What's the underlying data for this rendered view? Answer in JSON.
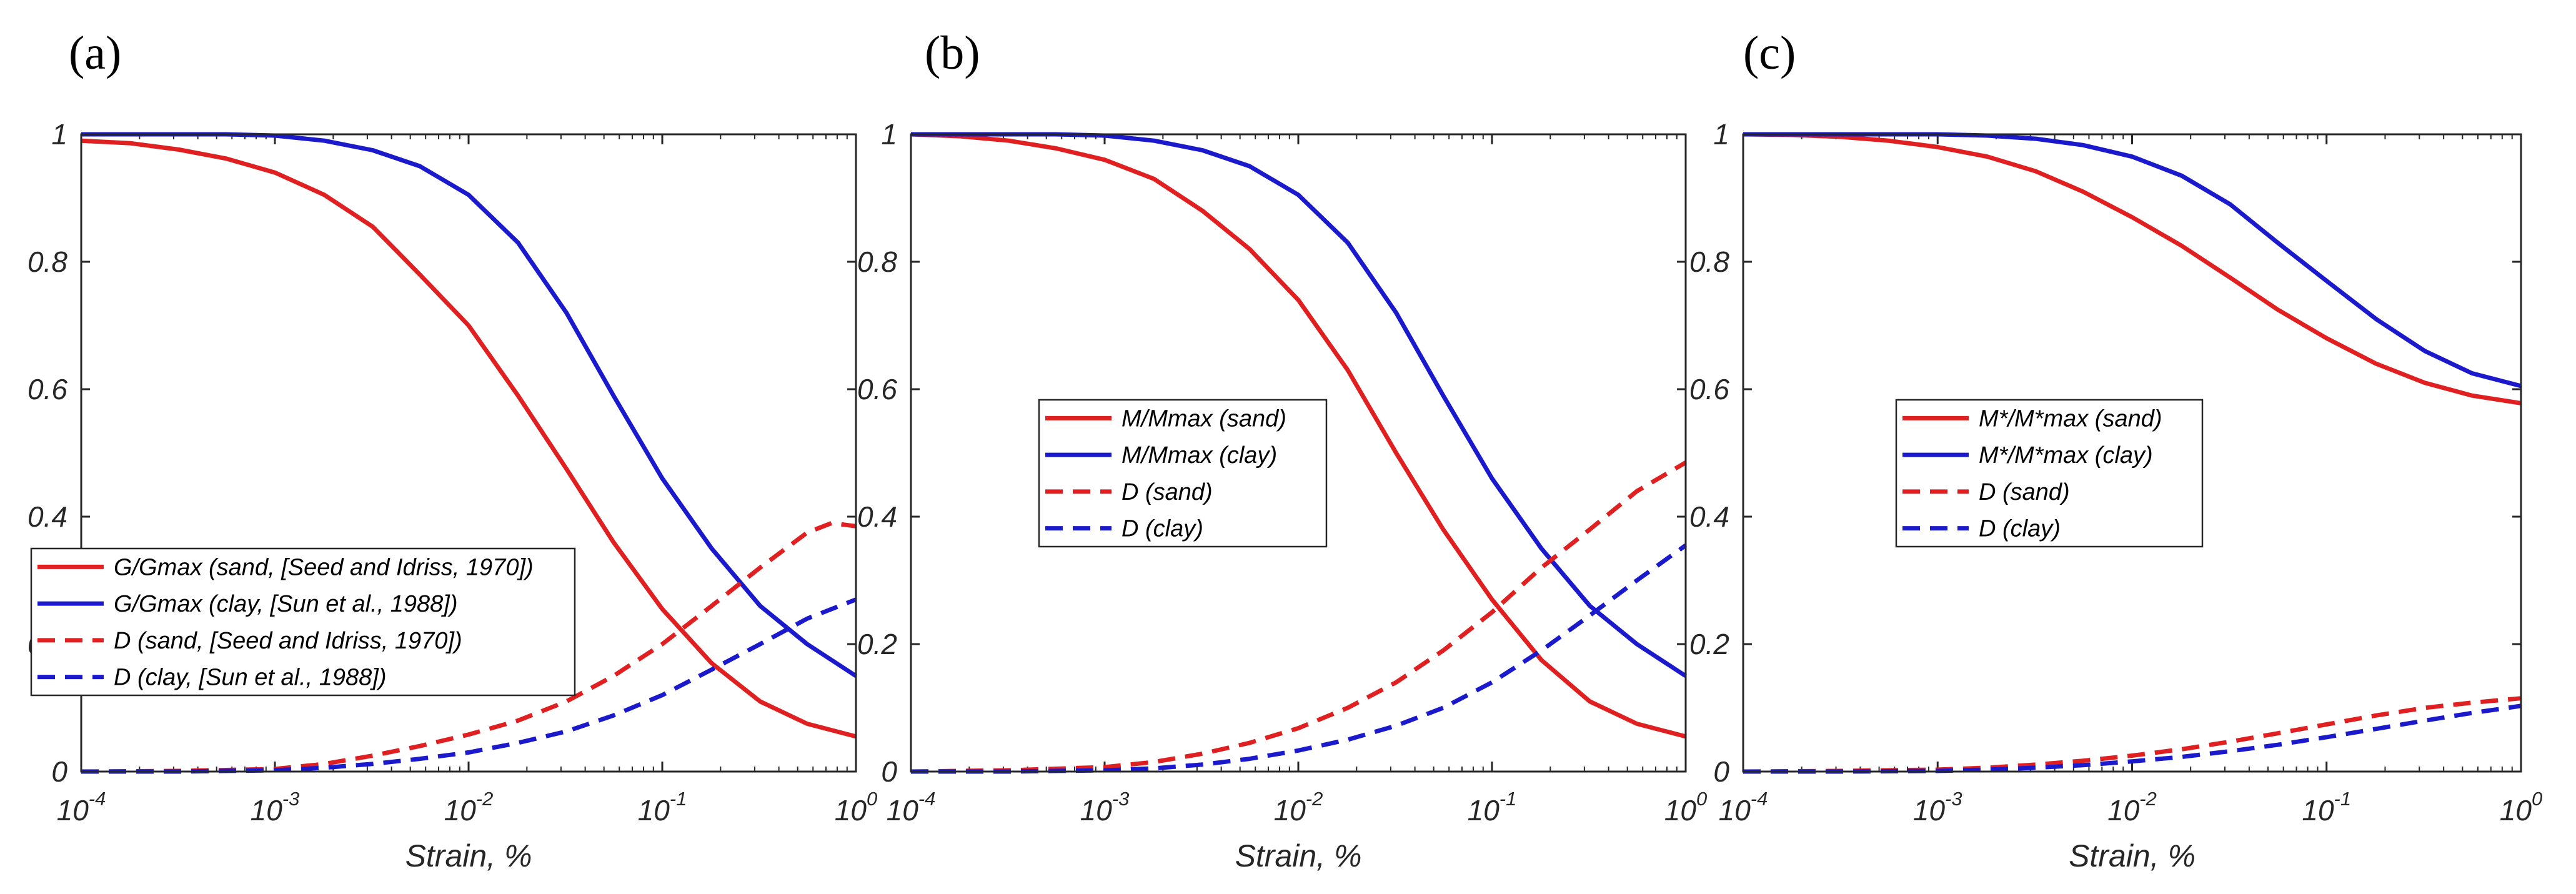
{
  "chart_data": [
    {
      "type": "line",
      "panel_label": "(a)",
      "xscale": "log",
      "xlim": [
        0.0001,
        1
      ],
      "ylim": [
        0,
        1
      ],
      "xlabel": "Strain, %",
      "ylabel": "",
      "x_ticks": [
        {
          "base": "10",
          "exp": "-4"
        },
        {
          "base": "10",
          "exp": "-3"
        },
        {
          "base": "10",
          "exp": "-2"
        },
        {
          "base": "10",
          "exp": "-1"
        },
        {
          "base": "10",
          "exp": "0"
        }
      ],
      "y_ticks": [
        "0",
        "0.2",
        "0.4",
        "0.6",
        "0.8",
        "1"
      ],
      "legend_position": "lower-left",
      "series": [
        {
          "name": "G/Gmax (sand, [Seed and Idriss, 1970])",
          "color": "#e02020",
          "dash": "solid",
          "x": [
            0.0001,
            0.00018,
            0.00032,
            0.00056,
            0.001,
            0.0018,
            0.0032,
            0.0056,
            0.01,
            0.018,
            0.032,
            0.056,
            0.1,
            0.18,
            0.32,
            0.56,
            1
          ],
          "y": [
            0.99,
            0.986,
            0.976,
            0.962,
            0.94,
            0.905,
            0.855,
            0.78,
            0.7,
            0.59,
            0.475,
            0.36,
            0.255,
            0.17,
            0.11,
            0.075,
            0.055
          ]
        },
        {
          "name": "G/Gmax (clay, [Sun et al., 1988])",
          "color": "#1a1acc",
          "dash": "solid",
          "x": [
            0.0001,
            0.00018,
            0.00032,
            0.00056,
            0.001,
            0.0018,
            0.0032,
            0.0056,
            0.01,
            0.018,
            0.032,
            0.056,
            0.1,
            0.18,
            0.32,
            0.56,
            1
          ],
          "y": [
            1.0,
            1.0,
            1.0,
            1.0,
            0.998,
            0.99,
            0.975,
            0.95,
            0.905,
            0.83,
            0.72,
            0.59,
            0.46,
            0.35,
            0.26,
            0.2,
            0.15
          ]
        },
        {
          "name": "D (sand, [Seed and Idriss, 1970])",
          "color": "#e02020",
          "dash": "dashed",
          "x": [
            0.0001,
            0.00032,
            0.001,
            0.0018,
            0.0032,
            0.0056,
            0.01,
            0.018,
            0.032,
            0.056,
            0.1,
            0.18,
            0.32,
            0.56,
            0.75,
            1
          ],
          "y": [
            0.0,
            0.001,
            0.004,
            0.012,
            0.025,
            0.04,
            0.058,
            0.08,
            0.11,
            0.15,
            0.2,
            0.26,
            0.32,
            0.375,
            0.39,
            0.385
          ]
        },
        {
          "name": "D (clay, [Sun et al., 1988])",
          "color": "#1a1acc",
          "dash": "dashed",
          "x": [
            0.0001,
            0.00032,
            0.001,
            0.0018,
            0.0032,
            0.0056,
            0.01,
            0.018,
            0.032,
            0.056,
            0.1,
            0.18,
            0.32,
            0.56,
            1
          ],
          "y": [
            0.0,
            0.0,
            0.002,
            0.006,
            0.012,
            0.02,
            0.03,
            0.045,
            0.063,
            0.088,
            0.12,
            0.16,
            0.2,
            0.24,
            0.27
          ]
        }
      ]
    },
    {
      "type": "line",
      "panel_label": "(b)",
      "xscale": "log",
      "xlim": [
        0.0001,
        1
      ],
      "ylim": [
        0,
        1
      ],
      "xlabel": "Strain, %",
      "ylabel": "",
      "x_ticks": [
        {
          "base": "10",
          "exp": "-4"
        },
        {
          "base": "10",
          "exp": "-3"
        },
        {
          "base": "10",
          "exp": "-2"
        },
        {
          "base": "10",
          "exp": "-1"
        },
        {
          "base": "10",
          "exp": "0"
        }
      ],
      "y_ticks": [
        "0",
        "0.2",
        "0.4",
        "0.6",
        "0.8",
        "1"
      ],
      "legend_position": "center-left",
      "series": [
        {
          "name": "M/Mmax (sand)",
          "color": "#e02020",
          "dash": "solid",
          "x": [
            0.0001,
            0.00018,
            0.00032,
            0.00056,
            0.001,
            0.0018,
            0.0032,
            0.0056,
            0.01,
            0.018,
            0.032,
            0.056,
            0.1,
            0.18,
            0.32,
            0.56,
            1
          ],
          "y": [
            1.0,
            0.997,
            0.99,
            0.978,
            0.96,
            0.93,
            0.88,
            0.82,
            0.74,
            0.63,
            0.5,
            0.38,
            0.27,
            0.175,
            0.11,
            0.075,
            0.055
          ]
        },
        {
          "name": "M/Mmax (clay)",
          "color": "#1a1acc",
          "dash": "solid",
          "x": [
            0.0001,
            0.00018,
            0.00032,
            0.00056,
            0.001,
            0.0018,
            0.0032,
            0.0056,
            0.01,
            0.018,
            0.032,
            0.056,
            0.1,
            0.18,
            0.32,
            0.56,
            1
          ],
          "y": [
            1.0,
            1.0,
            1.0,
            1.0,
            0.998,
            0.99,
            0.975,
            0.95,
            0.905,
            0.83,
            0.72,
            0.59,
            0.46,
            0.35,
            0.26,
            0.2,
            0.15
          ]
        },
        {
          "name": "D (sand)",
          "color": "#e02020",
          "dash": "dashed",
          "x": [
            0.0001,
            0.00032,
            0.001,
            0.0018,
            0.0032,
            0.0056,
            0.01,
            0.018,
            0.032,
            0.056,
            0.1,
            0.18,
            0.32,
            0.56,
            1
          ],
          "y": [
            0.0,
            0.002,
            0.007,
            0.015,
            0.028,
            0.045,
            0.068,
            0.1,
            0.14,
            0.19,
            0.25,
            0.32,
            0.38,
            0.44,
            0.485
          ]
        },
        {
          "name": "D (clay)",
          "color": "#1a1acc",
          "dash": "dashed",
          "x": [
            0.0001,
            0.00032,
            0.001,
            0.0018,
            0.0032,
            0.0056,
            0.01,
            0.018,
            0.032,
            0.056,
            0.1,
            0.18,
            0.32,
            0.56,
            1
          ],
          "y": [
            0.0,
            0.0,
            0.002,
            0.005,
            0.011,
            0.02,
            0.033,
            0.05,
            0.072,
            0.1,
            0.14,
            0.19,
            0.245,
            0.3,
            0.355
          ]
        }
      ]
    },
    {
      "type": "line",
      "panel_label": "(c)",
      "xscale": "log",
      "xlim": [
        0.0001,
        1
      ],
      "ylim": [
        0,
        1
      ],
      "xlabel": "Strain, %",
      "ylabel": "",
      "x_ticks": [
        {
          "base": "10",
          "exp": "-4"
        },
        {
          "base": "10",
          "exp": "-3"
        },
        {
          "base": "10",
          "exp": "-2"
        },
        {
          "base": "10",
          "exp": "-1"
        },
        {
          "base": "10",
          "exp": "0"
        }
      ],
      "y_ticks": [
        "0",
        "0.2",
        "0.4",
        "0.6",
        "0.8",
        "1"
      ],
      "legend_position": "center-left",
      "series": [
        {
          "name": "M*/M*max (sand)",
          "color": "#e02020",
          "dash": "solid",
          "x": [
            0.0001,
            0.00018,
            0.00032,
            0.00056,
            0.001,
            0.0018,
            0.0032,
            0.0056,
            0.01,
            0.018,
            0.032,
            0.056,
            0.1,
            0.18,
            0.32,
            0.56,
            1
          ],
          "y": [
            1.0,
            0.999,
            0.996,
            0.99,
            0.98,
            0.965,
            0.942,
            0.91,
            0.87,
            0.825,
            0.775,
            0.725,
            0.68,
            0.64,
            0.61,
            0.59,
            0.578
          ]
        },
        {
          "name": "M*/M*max (clay)",
          "color": "#1a1acc",
          "dash": "solid",
          "x": [
            0.0001,
            0.00018,
            0.00032,
            0.00056,
            0.001,
            0.0018,
            0.0032,
            0.0056,
            0.01,
            0.018,
            0.032,
            0.056,
            0.1,
            0.18,
            0.32,
            0.56,
            1
          ],
          "y": [
            1.0,
            1.0,
            1.0,
            1.0,
            1.0,
            0.998,
            0.993,
            0.983,
            0.965,
            0.935,
            0.89,
            0.83,
            0.77,
            0.71,
            0.66,
            0.625,
            0.605
          ]
        },
        {
          "name": "D (sand)",
          "color": "#e02020",
          "dash": "dashed",
          "x": [
            0.0001,
            0.00032,
            0.001,
            0.0018,
            0.0032,
            0.0056,
            0.01,
            0.018,
            0.032,
            0.056,
            0.1,
            0.18,
            0.32,
            0.56,
            1
          ],
          "y": [
            0.0,
            0.001,
            0.003,
            0.006,
            0.011,
            0.017,
            0.025,
            0.035,
            0.047,
            0.06,
            0.074,
            0.088,
            0.1,
            0.108,
            0.115
          ]
        },
        {
          "name": "D (clay)",
          "color": "#1a1acc",
          "dash": "dashed",
          "x": [
            0.0001,
            0.00032,
            0.001,
            0.0018,
            0.0032,
            0.0056,
            0.01,
            0.018,
            0.032,
            0.056,
            0.1,
            0.18,
            0.32,
            0.56,
            1
          ],
          "y": [
            0.0,
            0.0,
            0.001,
            0.003,
            0.006,
            0.01,
            0.016,
            0.023,
            0.032,
            0.042,
            0.054,
            0.067,
            0.08,
            0.092,
            0.103
          ]
        }
      ]
    }
  ]
}
